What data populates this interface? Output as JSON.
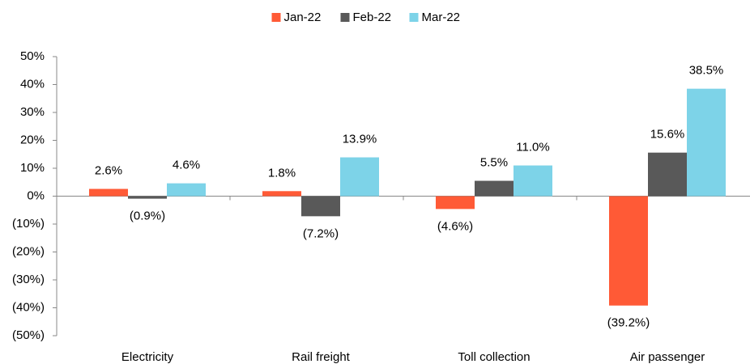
{
  "chart_data": {
    "type": "bar",
    "categories": [
      "Electricity",
      "Rail freight",
      "Toll collection",
      "Air passenger"
    ],
    "series": [
      {
        "name": "Jan-22",
        "color": "#ff5a36",
        "values": [
          2.6,
          1.8,
          -4.6,
          -39.2
        ],
        "value_labels": [
          "2.6%",
          "1.8%",
          "(4.6%)",
          "(39.2%)"
        ]
      },
      {
        "name": "Feb-22",
        "color": "#595959",
        "values": [
          -0.9,
          -7.2,
          5.5,
          15.6
        ],
        "value_labels": [
          "(0.9%)",
          "(7.2%)",
          "5.5%",
          "15.6%"
        ]
      },
      {
        "name": "Mar-22",
        "color": "#7dd3e8",
        "values": [
          4.6,
          13.9,
          11.0,
          38.5
        ],
        "value_labels": [
          "4.6%",
          "13.9%",
          "11.0%",
          "38.5%"
        ]
      }
    ],
    "ylim": [
      -50,
      50
    ],
    "yticks": [
      {
        "value": 50,
        "label": "50%"
      },
      {
        "value": 40,
        "label": "40%"
      },
      {
        "value": 30,
        "label": "30%"
      },
      {
        "value": 20,
        "label": "20%"
      },
      {
        "value": 10,
        "label": "10%"
      },
      {
        "value": 0,
        "label": "0%"
      },
      {
        "value": -10,
        "label": "(10%)"
      },
      {
        "value": -20,
        "label": "(20%)"
      },
      {
        "value": -30,
        "label": "(30%)"
      },
      {
        "value": -40,
        "label": "(40%)"
      },
      {
        "value": -50,
        "label": "(50%)"
      }
    ],
    "legend": "top"
  }
}
